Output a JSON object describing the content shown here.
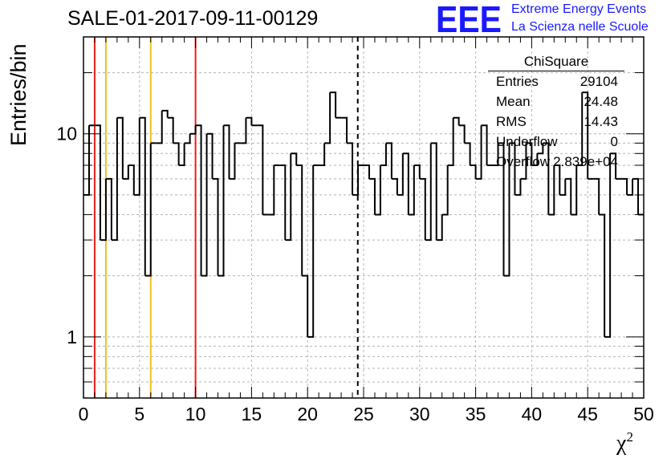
{
  "title": "SALE-01-2017-09-11-00129",
  "logo": {
    "letters": "EEE",
    "line1": "Extreme Energy Events",
    "line2": "La Scienza nelle Scuole",
    "color": "#1a1aff"
  },
  "stats_box": {
    "title": "ChiSquare",
    "rows": [
      {
        "key": "Entries",
        "value": "29104"
      },
      {
        "key": "Mean",
        "value": "24.48"
      },
      {
        "key": "RMS",
        "value": "14.43"
      },
      {
        "key": "Underflow",
        "value": "0"
      },
      {
        "key": "Overflow",
        "value": "2.839e+04"
      }
    ]
  },
  "chart_data": {
    "type": "histogram",
    "y_scale": "log",
    "xlabel": "χ",
    "xlabel_superscript": "2",
    "ylabel": "Entries/bin",
    "xlim": [
      0,
      50
    ],
    "ylim": [
      0.5,
      30
    ],
    "x_ticks": [
      "0",
      "5",
      "10",
      "15",
      "20",
      "25",
      "30",
      "35",
      "40",
      "45",
      "50"
    ],
    "y_ticks": [
      "1",
      "10"
    ],
    "grid": true,
    "bin_width": 0.5,
    "counts": [
      5,
      11,
      11,
      3,
      6,
      3,
      12,
      6,
      7,
      5,
      12,
      2,
      9,
      9,
      13,
      12,
      9,
      7,
      9,
      10,
      11,
      2,
      10,
      6,
      2,
      11,
      6,
      9,
      9,
      12,
      11,
      11,
      4,
      4,
      7,
      7,
      3,
      8,
      7,
      2,
      1,
      7,
      7,
      9,
      16,
      12,
      12,
      9,
      5,
      7,
      7,
      6,
      4,
      7,
      9,
      6,
      5,
      8,
      4,
      7,
      6,
      3,
      9,
      3,
      4,
      7,
      12,
      11,
      9,
      7,
      6,
      11,
      7,
      7,
      9,
      2,
      9,
      5,
      6,
      9,
      7,
      8,
      9,
      4,
      7,
      5,
      6,
      4,
      7,
      16,
      6,
      6,
      4,
      1,
      8,
      6,
      6,
      5,
      6,
      4
    ],
    "vertical_lines": [
      {
        "x": 1,
        "color": "#e8201f",
        "style": "solid"
      },
      {
        "x": 2,
        "color": "#f0c020",
        "style": "solid"
      },
      {
        "x": 6,
        "color": "#f0c020",
        "style": "solid"
      },
      {
        "x": 10,
        "color": "#e8201f",
        "style": "solid"
      },
      {
        "x": 24.48,
        "color": "#000000",
        "style": "dashed"
      }
    ],
    "line_color": "#000000"
  }
}
